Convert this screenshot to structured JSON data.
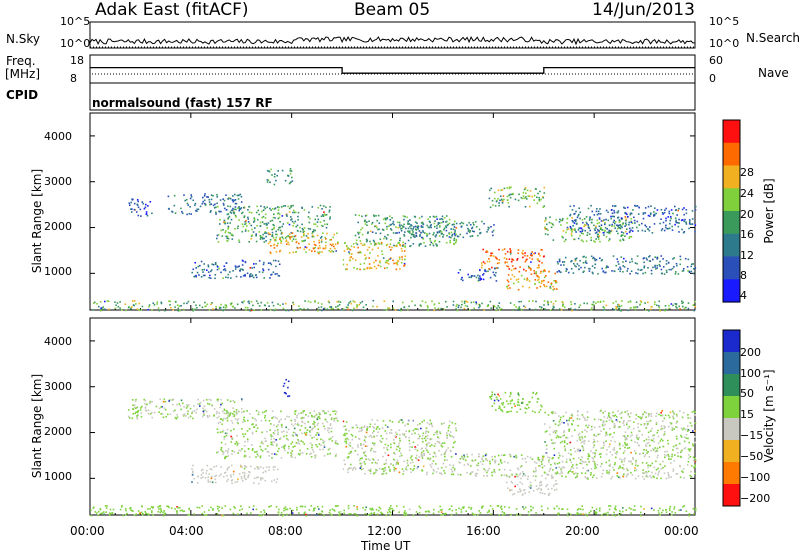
{
  "header": {
    "station": "Adak East (fitACF)",
    "beam": "Beam 05",
    "date": "14/Jun/2013"
  },
  "top_panels": {
    "nsky_label": "N.Sky",
    "nsearch_label": "N.Search",
    "nsky_ticks": [
      "10^5",
      "10^0"
    ],
    "nsearch_ticks": [
      "10^5",
      "10^0"
    ],
    "freq_label_1": "Freq.",
    "freq_label_2": "[MHz]",
    "freq_ticks": [
      "18",
      "8"
    ],
    "nave_label": "Nave",
    "nave_ticks": [
      "60",
      "0"
    ],
    "cpid_label": "CPID",
    "cpid_text": "normalsound (fast) 157 RF"
  },
  "power_panel": {
    "ylabel": "Slant Range [km]",
    "yticks": [
      "4000",
      "3000",
      "2000",
      "1000"
    ],
    "colorbar_label": "Power [dB]",
    "colorbar_ticks": [
      "28",
      "24",
      "20",
      "16",
      "12",
      "8",
      "4"
    ],
    "colors": [
      "#1a1aff",
      "#2a4fb8",
      "#2d7a8c",
      "#3a9a5c",
      "#7fd03a",
      "#f0b020",
      "#ff6a00",
      "#ff1010"
    ]
  },
  "velocity_panel": {
    "ylabel": "Slant Range [km]",
    "yticks": [
      "4000",
      "3000",
      "2000",
      "1000"
    ],
    "colorbar_label": "Velocity [m s⁻¹]",
    "colorbar_ticks": [
      "200",
      "100",
      "50",
      "15",
      "−15",
      "−50",
      "−100",
      "−200"
    ],
    "colors": [
      "#1a2acc",
      "#2a6a9c",
      "#2f8f5a",
      "#7ed23c",
      "#c8c8c0",
      "#f0b020",
      "#ff7a00",
      "#ff1010"
    ]
  },
  "time_axis": {
    "ticks": [
      "00:00",
      "04:00",
      "08:00",
      "12:00",
      "16:00",
      "20:00",
      "00:00"
    ],
    "label": "Time UT"
  },
  "chart_data": [
    {
      "type": "line",
      "name": "Frequency",
      "x": [
        "00:00",
        "10:00",
        "10:00",
        "18:00",
        "18:00",
        "24:00"
      ],
      "y": [
        13.5,
        13.5,
        11.5,
        11.5,
        13.5,
        13.5
      ],
      "ylim": [
        8,
        18
      ],
      "ylabel": "Freq. [MHz]"
    },
    {
      "type": "heatmap",
      "title": "Power [dB]",
      "xlabel": "Time UT",
      "ylabel": "Slant Range [km]",
      "xlim": [
        "00:00",
        "24:00"
      ],
      "ylim": [
        200,
        4500
      ],
      "zlim": [
        0,
        32
      ],
      "bands": [
        {
          "t": [
            1.5,
            2.5
          ],
          "r": [
            2250,
            2650
          ],
          "p": 6
        },
        {
          "t": [
            3.0,
            6.0
          ],
          "r": [
            2300,
            2750
          ],
          "p": 9
        },
        {
          "t": [
            5.0,
            9.5
          ],
          "r": [
            1700,
            2500
          ],
          "p": 14
        },
        {
          "t": [
            7.0,
            9.8
          ],
          "r": [
            1450,
            1900
          ],
          "p": 22
        },
        {
          "t": [
            4.0,
            7.5
          ],
          "r": [
            900,
            1300
          ],
          "p": 8
        },
        {
          "t": [
            10.0,
            12.5
          ],
          "r": [
            1100,
            1700
          ],
          "p": 22
        },
        {
          "t": [
            10.5,
            14.5
          ],
          "r": [
            1600,
            2300
          ],
          "p": 14
        },
        {
          "t": [
            12.0,
            16.0
          ],
          "r": [
            1800,
            2150
          ],
          "p": 11
        },
        {
          "t": [
            14.5,
            16.2
          ],
          "r": [
            850,
            1150
          ],
          "p": 7
        },
        {
          "t": [
            15.5,
            18.0
          ],
          "r": [
            1050,
            1550
          ],
          "p": 27
        },
        {
          "t": [
            16.5,
            18.5
          ],
          "r": [
            650,
            1100
          ],
          "p": 22
        },
        {
          "t": [
            15.8,
            18.0
          ],
          "r": [
            2450,
            2900
          ],
          "p": 16
        },
        {
          "t": [
            18.0,
            21.5
          ],
          "r": [
            1700,
            2250
          ],
          "p": 16
        },
        {
          "t": [
            18.5,
            24.0
          ],
          "r": [
            1000,
            1400
          ],
          "p": 10
        },
        {
          "t": [
            19.0,
            24.0
          ],
          "r": [
            1900,
            2500
          ],
          "p": 8
        },
        {
          "t": [
            7.0,
            8.0
          ],
          "r": [
            2950,
            3300
          ],
          "p": 14
        },
        {
          "t": [
            0.0,
            24.0
          ],
          "r": [
            200,
            420
          ],
          "p": 16
        }
      ]
    },
    {
      "type": "heatmap",
      "title": "Velocity [m s⁻¹]",
      "xlabel": "Time UT",
      "ylabel": "Slant Range [km]",
      "xlim": [
        "00:00",
        "24:00"
      ],
      "ylim": [
        200,
        4500
      ],
      "zlim": [
        -250,
        250
      ],
      "bands": [
        {
          "t": [
            1.5,
            6.0
          ],
          "r": [
            2300,
            2750
          ],
          "v": 0
        },
        {
          "t": [
            5.0,
            9.8
          ],
          "r": [
            1450,
            2500
          ],
          "v": 0
        },
        {
          "t": [
            4.0,
            7.5
          ],
          "r": [
            900,
            1300
          ],
          "v": -20
        },
        {
          "t": [
            10.0,
            14.5
          ],
          "r": [
            1100,
            2300
          ],
          "v": 0
        },
        {
          "t": [
            10.0,
            10.3
          ],
          "r": [
            1700,
            2000
          ],
          "v": 40
        },
        {
          "t": [
            14.5,
            18.0
          ],
          "r": [
            1050,
            1550
          ],
          "v": 0
        },
        {
          "t": [
            15.8,
            18.0
          ],
          "r": [
            2450,
            2900
          ],
          "v": 40
        },
        {
          "t": [
            16.5,
            18.5
          ],
          "r": [
            650,
            1100
          ],
          "v": -30
        },
        {
          "t": [
            18.0,
            24.0
          ],
          "r": [
            1000,
            2500
          ],
          "v": 0
        },
        {
          "t": [
            7.6,
            7.9
          ],
          "r": [
            2800,
            3200
          ],
          "v": 220
        },
        {
          "t": [
            0.0,
            24.0
          ],
          "r": [
            200,
            420
          ],
          "v": 30
        }
      ]
    }
  ]
}
